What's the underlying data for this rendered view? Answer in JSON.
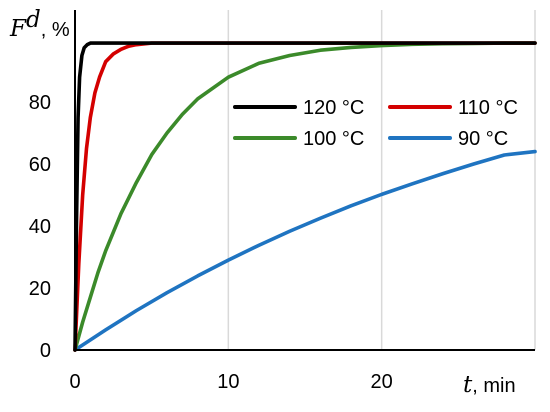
{
  "chart_data": {
    "type": "line",
    "title": "",
    "xlabel": {
      "symbol": "t",
      "unit": ", min"
    },
    "ylabel": {
      "symbol": "F",
      "superscript": "d",
      "unit": ", %"
    },
    "xlim": [
      0,
      30
    ],
    "ylim": [
      0,
      100
    ],
    "x_ticks": [
      0,
      10,
      20
    ],
    "y_ticks": [
      0,
      20,
      40,
      60,
      80
    ],
    "grid": "vertical",
    "legend_position": "upper-right",
    "series": [
      {
        "name": "120 °C",
        "color": "#000000",
        "x": [
          0,
          0.1,
          0.2,
          0.3,
          0.45,
          0.6,
          0.8,
          1.0,
          2,
          5,
          10,
          20,
          30
        ],
        "y": [
          0,
          42,
          75,
          88,
          95,
          97.5,
          98.5,
          99,
          99,
          99,
          99,
          99,
          99
        ]
      },
      {
        "name": "110 °C",
        "color": "#d40000",
        "x": [
          0,
          0.25,
          0.5,
          0.75,
          1.0,
          1.3,
          1.6,
          2.0,
          2.5,
          3.0,
          3.5,
          4.0,
          5,
          7,
          10,
          15,
          20,
          25,
          30
        ],
        "y": [
          0,
          28,
          50,
          65,
          75,
          83,
          88,
          93,
          95.5,
          97,
          98,
          98.5,
          99,
          99,
          99,
          99,
          99,
          99,
          99
        ]
      },
      {
        "name": "100 °C",
        "color": "#3b8a2a",
        "x": [
          0,
          0.5,
          1,
          1.5,
          2,
          3,
          4,
          5,
          6,
          7,
          8,
          10,
          12,
          14,
          16,
          18,
          20,
          22,
          24,
          26,
          28,
          30
        ],
        "y": [
          0,
          9,
          17,
          25,
          32,
          44,
          54,
          63,
          70,
          76,
          81,
          88,
          92.5,
          95,
          96.7,
          97.6,
          98.2,
          98.6,
          98.8,
          98.9,
          99,
          99
        ]
      },
      {
        "name": "90 °C",
        "color": "#1f74c1",
        "x": [
          0,
          2,
          4,
          6,
          8,
          10,
          12,
          14,
          16,
          18,
          20,
          22,
          24,
          26,
          28,
          30
        ],
        "y": [
          0,
          6.5,
          12.7,
          18.5,
          23.9,
          29,
          33.8,
          38.3,
          42.5,
          46.5,
          50.2,
          53.6,
          56.9,
          60,
          62.9,
          64
        ]
      }
    ]
  }
}
